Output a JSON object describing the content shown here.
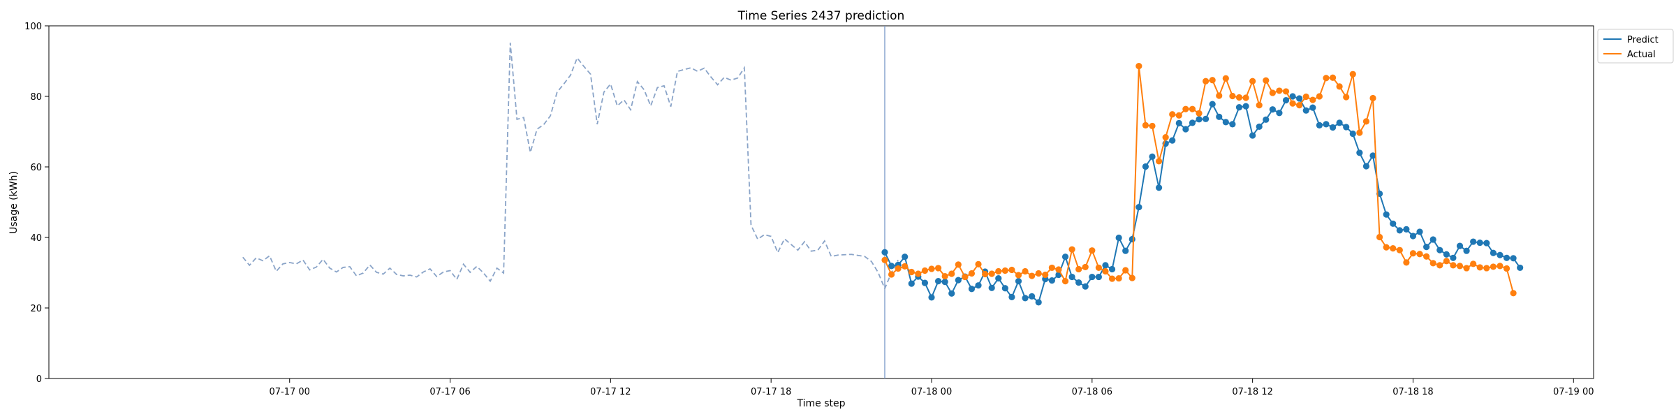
{
  "chart_data": {
    "type": "line",
    "title": "Time Series 2437 prediction",
    "xlabel": "Time step",
    "ylabel": "Usage (kWh)",
    "ylim": [
      0,
      100
    ],
    "yticks": [
      0,
      20,
      40,
      60,
      80,
      100
    ],
    "xlim": [
      "2024-07-16 15:00",
      "2024-07-19 00:45"
    ],
    "xtick_labels": [
      "07-17 00",
      "07-17 06",
      "07-17 12",
      "07-17 18",
      "07-18 00",
      "07-18 06",
      "07-18 12",
      "07-18 18",
      "07-19 00"
    ],
    "xtick_values": [
      "2024-07-17 00:00",
      "2024-07-17 06:00",
      "2024-07-17 12:00",
      "2024-07-17 18:00",
      "2024-07-18 00:00",
      "2024-07-18 06:00",
      "2024-07-18 12:00",
      "2024-07-18 18:00",
      "2024-07-19 00:00"
    ],
    "grid": false,
    "legend_position": "top-right (outside)",
    "forecast_start": "2024-07-17 22:15",
    "series": [
      {
        "style": "dashed",
        "color": "#8aa4c8",
        "x_start": "2024-07-16 22:15",
        "x_step_minutes": 15,
        "values": [
          34.4,
          32.1,
          34.2,
          33.4,
          34.8,
          30.4,
          32.5,
          32.9,
          32.5,
          33.6,
          30.8,
          31.6,
          33.8,
          31.3,
          30.2,
          31.5,
          31.7,
          29.1,
          29.9,
          32.2,
          30.1,
          29.6,
          31.3,
          29.5,
          29.1,
          29.3,
          28.8,
          30.2,
          31.1,
          28.9,
          30.2,
          30.6,
          28.1,
          32.4,
          30.1,
          31.8,
          29.9,
          27.6,
          31.3,
          29.9,
          95.2,
          73.5,
          74.0,
          64.1,
          70.7,
          72.0,
          74.5,
          81.2,
          83.5,
          86.0,
          90.9,
          88.5,
          86.3,
          72.1,
          81.2,
          83.5,
          77.3,
          79.0,
          76.2,
          84.2,
          81.9,
          77.3,
          82.5,
          83.0,
          77.1,
          87.1,
          87.6,
          88.1,
          87.1,
          88.0,
          85.5,
          83.3,
          85.4,
          84.6,
          85.2,
          88.1,
          43.5,
          39.5,
          40.8,
          40.3,
          35.7,
          39.6,
          38.0,
          36.4,
          38.8,
          36.1,
          36.4,
          39.0,
          34.6,
          35.0,
          35.1,
          35.2,
          34.9,
          34.6,
          33.2,
          30.1,
          25.5,
          30.0,
          33.6
        ]
      },
      {
        "name": "Predict",
        "color": "#1f77b4",
        "x_start": "2024-07-17 22:15",
        "x_step_minutes": 15,
        "values": [
          35.8,
          31.9,
          32.2,
          34.5,
          26.9,
          28.9,
          27.1,
          23.0,
          27.6,
          27.4,
          24.1,
          27.9,
          28.9,
          25.4,
          26.4,
          30.3,
          25.7,
          28.4,
          25.6,
          23.1,
          27.6,
          22.8,
          23.3,
          21.6,
          28.2,
          27.8,
          29.4,
          34.5,
          28.8,
          27.2,
          26.1,
          28.8,
          28.8,
          32.1,
          31.0,
          39.9,
          36.2,
          39.5,
          48.6,
          60.1,
          62.9,
          54.1,
          66.6,
          67.5,
          72.4,
          70.7,
          72.5,
          73.5,
          73.6,
          77.8,
          74.2,
          72.7,
          72.1,
          76.9,
          77.2,
          68.9,
          71.4,
          73.4,
          76.3,
          75.3,
          78.9,
          80.0,
          79.4,
          76.0,
          76.8,
          71.8,
          72.1,
          71.2,
          72.5,
          71.3,
          69.4,
          64.0,
          60.2,
          63.2,
          52.4,
          46.5,
          43.9,
          42.0,
          42.3,
          40.4,
          41.6,
          37.3,
          39.4,
          36.4,
          35.2,
          34.2,
          37.6,
          36.2,
          38.8,
          38.5,
          38.4,
          35.6,
          35.0,
          34.2,
          34.1,
          31.4
        ]
      },
      {
        "name": "Actual",
        "color": "#ff7f0e",
        "x_start": "2024-07-17 22:15",
        "x_step_minutes": 15,
        "values": [
          33.6,
          29.5,
          31.2,
          31.8,
          30.2,
          29.7,
          30.6,
          31.1,
          31.3,
          29.0,
          29.7,
          32.3,
          28.8,
          29.8,
          32.4,
          29.6,
          29.7,
          30.4,
          30.6,
          30.8,
          29.3,
          30.4,
          29.1,
          29.8,
          29.4,
          31.4,
          30.9,
          27.6,
          36.6,
          31.0,
          31.6,
          36.3,
          31.4,
          30.4,
          28.3,
          28.4,
          30.7,
          28.5,
          88.6,
          71.8,
          71.6,
          61.6,
          68.4,
          74.9,
          74.6,
          76.4,
          76.4,
          75.2,
          84.3,
          84.6,
          80.2,
          85.1,
          80.1,
          79.7,
          79.6,
          84.3,
          77.5,
          84.5,
          81.0,
          81.6,
          81.4,
          78.0,
          77.5,
          79.9,
          79.0,
          80.0,
          85.2,
          85.3,
          82.8,
          79.8,
          86.3,
          69.7,
          72.9,
          79.5,
          40.1,
          37.2,
          36.9,
          36.4,
          32.9,
          35.5,
          35.3,
          34.6,
          32.7,
          32.1,
          33.3,
          32.1,
          31.9,
          31.3,
          32.5,
          31.5,
          31.3,
          31.7,
          31.9,
          31.2,
          24.2
        ]
      }
    ]
  }
}
